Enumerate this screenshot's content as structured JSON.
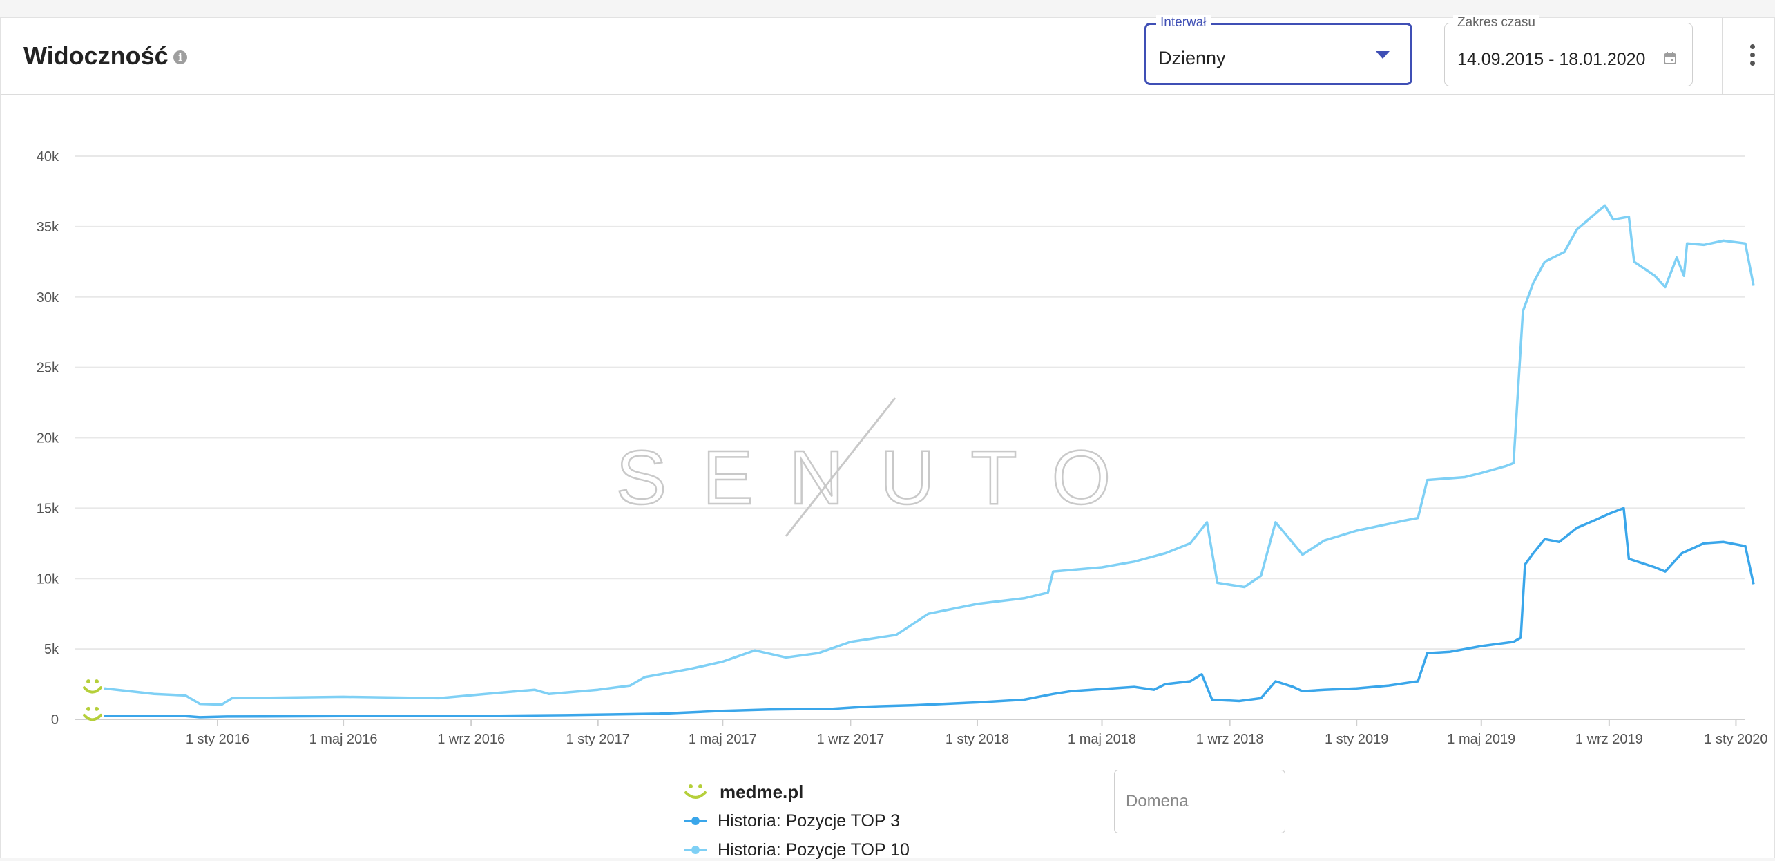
{
  "header": {
    "title": "Widoczność",
    "info_icon": "info-icon",
    "interval_label": "Interwał",
    "interval_value": "Dzienny",
    "range_label": "Zakres czasu",
    "range_value": "14.09.2015 - 18.01.2020",
    "accent_color": "#3f4fb5"
  },
  "watermark": "SENUTO",
  "legend": {
    "site": "medme.pl",
    "site_icon": "smiley-icon",
    "site_color": "#b5cf3a"
  },
  "domain_input": {
    "placeholder": "Domena",
    "value": ""
  },
  "chart_data": {
    "type": "line",
    "x_range": [
      "2015-09-14",
      "2020-01-18"
    ],
    "ylim": [
      0,
      40000
    ],
    "y_ticks": [
      "0",
      "5k",
      "10k",
      "15k",
      "20k",
      "25k",
      "30k",
      "35k",
      "40k"
    ],
    "x_ticks": [
      {
        "label": "1 sty 2016",
        "date": "2016-01-01"
      },
      {
        "label": "1 maj 2016",
        "date": "2016-05-01"
      },
      {
        "label": "1 wrz 2016",
        "date": "2016-09-01"
      },
      {
        "label": "1 sty 2017",
        "date": "2017-01-01"
      },
      {
        "label": "1 maj 2017",
        "date": "2017-05-01"
      },
      {
        "label": "1 wrz 2017",
        "date": "2017-09-01"
      },
      {
        "label": "1 sty 2018",
        "date": "2018-01-01"
      },
      {
        "label": "1 maj 2018",
        "date": "2018-05-01"
      },
      {
        "label": "1 wrz 2018",
        "date": "2018-09-01"
      },
      {
        "label": "1 sty 2019",
        "date": "2019-01-01"
      },
      {
        "label": "1 maj 2019",
        "date": "2019-05-01"
      },
      {
        "label": "1 wrz 2019",
        "date": "2019-09-01"
      },
      {
        "label": "1 sty 2020",
        "date": "2020-01-01"
      }
    ],
    "grid": true,
    "legend_position": "bottom",
    "series": [
      {
        "name": "Historia: Pozycje TOP 3",
        "color": "#3aa6ea",
        "points": [
          [
            "2015-09-14",
            250
          ],
          [
            "2015-11-01",
            260
          ],
          [
            "2015-12-01",
            230
          ],
          [
            "2015-12-15",
            150
          ],
          [
            "2016-01-10",
            200
          ],
          [
            "2016-05-01",
            230
          ],
          [
            "2016-09-01",
            240
          ],
          [
            "2016-12-01",
            300
          ],
          [
            "2017-03-01",
            400
          ],
          [
            "2017-05-01",
            600
          ],
          [
            "2017-06-15",
            700
          ],
          [
            "2017-08-15",
            750
          ],
          [
            "2017-09-15",
            900
          ],
          [
            "2017-11-01",
            1000
          ],
          [
            "2018-01-01",
            1200
          ],
          [
            "2018-02-15",
            1400
          ],
          [
            "2018-03-15",
            1800
          ],
          [
            "2018-04-01",
            2000
          ],
          [
            "2018-06-01",
            2300
          ],
          [
            "2018-06-20",
            2100
          ],
          [
            "2018-07-01",
            2500
          ],
          [
            "2018-07-25",
            2700
          ],
          [
            "2018-08-05",
            3200
          ],
          [
            "2018-08-15",
            1400
          ],
          [
            "2018-09-10",
            1300
          ],
          [
            "2018-10-01",
            1500
          ],
          [
            "2018-10-15",
            2700
          ],
          [
            "2018-11-01",
            2300
          ],
          [
            "2018-11-10",
            2000
          ],
          [
            "2018-12-01",
            2100
          ],
          [
            "2019-01-01",
            2200
          ],
          [
            "2019-02-01",
            2400
          ],
          [
            "2019-03-01",
            2700
          ],
          [
            "2019-03-10",
            4700
          ],
          [
            "2019-04-01",
            4800
          ],
          [
            "2019-05-01",
            5200
          ],
          [
            "2019-06-01",
            5500
          ],
          [
            "2019-06-08",
            5800
          ],
          [
            "2019-06-12",
            11000
          ],
          [
            "2019-06-20",
            11800
          ],
          [
            "2019-07-01",
            12800
          ],
          [
            "2019-07-15",
            12600
          ],
          [
            "2019-08-01",
            13600
          ],
          [
            "2019-08-20",
            14200
          ],
          [
            "2019-09-01",
            14600
          ],
          [
            "2019-09-15",
            15000
          ],
          [
            "2019-09-20",
            11400
          ],
          [
            "2019-10-15",
            10800
          ],
          [
            "2019-10-25",
            10500
          ],
          [
            "2019-11-10",
            11800
          ],
          [
            "2019-12-01",
            12500
          ],
          [
            "2019-12-20",
            12600
          ],
          [
            "2020-01-10",
            12300
          ],
          [
            "2020-01-18",
            9600
          ]
        ]
      },
      {
        "name": "Historia: Pozycje TOP 10",
        "color": "#7fd0f5",
        "points": [
          [
            "2015-09-14",
            2200
          ],
          [
            "2015-11-01",
            1800
          ],
          [
            "2015-12-01",
            1700
          ],
          [
            "2015-12-15",
            1100
          ],
          [
            "2016-01-05",
            1050
          ],
          [
            "2016-01-15",
            1500
          ],
          [
            "2016-05-01",
            1600
          ],
          [
            "2016-08-01",
            1500
          ],
          [
            "2016-09-15",
            1800
          ],
          [
            "2016-11-01",
            2100
          ],
          [
            "2016-11-15",
            1800
          ],
          [
            "2017-01-01",
            2100
          ],
          [
            "2017-02-01",
            2400
          ],
          [
            "2017-02-15",
            3000
          ],
          [
            "2017-04-01",
            3600
          ],
          [
            "2017-05-01",
            4100
          ],
          [
            "2017-06-01",
            4900
          ],
          [
            "2017-07-01",
            4400
          ],
          [
            "2017-08-01",
            4700
          ],
          [
            "2017-09-01",
            5500
          ],
          [
            "2017-10-15",
            6000
          ],
          [
            "2017-11-15",
            7500
          ],
          [
            "2018-01-01",
            8200
          ],
          [
            "2018-02-15",
            8600
          ],
          [
            "2018-03-10",
            9000
          ],
          [
            "2018-03-15",
            10500
          ],
          [
            "2018-05-01",
            10800
          ],
          [
            "2018-06-01",
            11200
          ],
          [
            "2018-07-01",
            11800
          ],
          [
            "2018-07-25",
            12500
          ],
          [
            "2018-08-10",
            14000
          ],
          [
            "2018-08-20",
            9700
          ],
          [
            "2018-09-15",
            9400
          ],
          [
            "2018-10-01",
            10200
          ],
          [
            "2018-10-15",
            14000
          ],
          [
            "2018-11-01",
            12500
          ],
          [
            "2018-11-10",
            11700
          ],
          [
            "2018-12-01",
            12700
          ],
          [
            "2019-01-01",
            13400
          ],
          [
            "2019-02-15",
            14100
          ],
          [
            "2019-03-01",
            14300
          ],
          [
            "2019-03-10",
            17000
          ],
          [
            "2019-04-15",
            17200
          ],
          [
            "2019-05-01",
            17500
          ],
          [
            "2019-05-25",
            18000
          ],
          [
            "2019-06-01",
            18200
          ],
          [
            "2019-06-10",
            29000
          ],
          [
            "2019-06-20",
            31000
          ],
          [
            "2019-07-01",
            32500
          ],
          [
            "2019-07-20",
            33200
          ],
          [
            "2019-08-01",
            34800
          ],
          [
            "2019-08-20",
            36000
          ],
          [
            "2019-08-28",
            36500
          ],
          [
            "2019-09-05",
            35500
          ],
          [
            "2019-09-20",
            35700
          ],
          [
            "2019-09-25",
            32500
          ],
          [
            "2019-10-15",
            31500
          ],
          [
            "2019-10-25",
            30700
          ],
          [
            "2019-11-05",
            32800
          ],
          [
            "2019-11-12",
            31500
          ],
          [
            "2019-11-15",
            33800
          ],
          [
            "2019-12-01",
            33700
          ],
          [
            "2019-12-20",
            34000
          ],
          [
            "2020-01-10",
            33800
          ],
          [
            "2020-01-18",
            30800
          ]
        ]
      }
    ]
  }
}
